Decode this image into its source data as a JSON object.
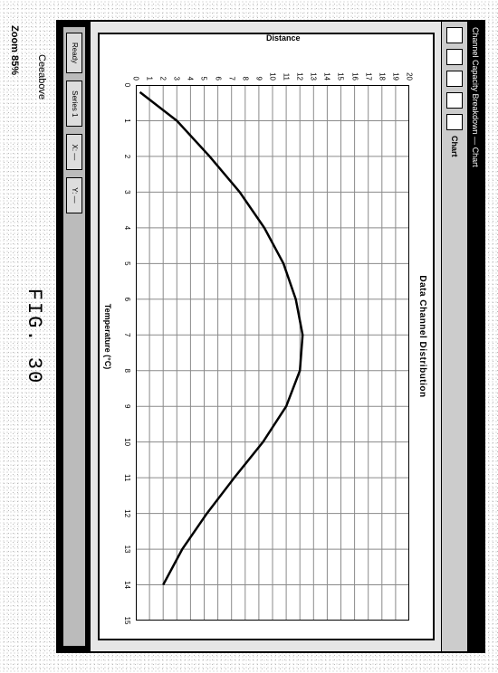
{
  "window": {
    "title": "Channel Capacity Breakdown — Chart",
    "toolbar_label": "Chart"
  },
  "chart": {
    "type": "line",
    "title": "Data Channel Distribution",
    "xlabel": "Temperature (°C)",
    "ylabel": "Distance",
    "xlim": [
      0,
      15
    ],
    "ylim": [
      0,
      20
    ],
    "xticks": [
      0,
      1,
      2,
      3,
      4,
      5,
      6,
      7,
      8,
      9,
      10,
      11,
      12,
      13,
      14,
      15
    ],
    "yticks": [
      0,
      1,
      2,
      3,
      4,
      5,
      6,
      7,
      8,
      9,
      10,
      11,
      12,
      13,
      14,
      15,
      16,
      17,
      18,
      19,
      20
    ],
    "grid_color": "#8a8a8a",
    "minor_grid_color": "#c4c4c4",
    "background_color": "#ffffff",
    "line_color": "#000000",
    "line_width": 2.5,
    "series": {
      "x": [
        0.2,
        1,
        2,
        3,
        4,
        5,
        6,
        7,
        8,
        9,
        10,
        11,
        12,
        13,
        14
      ],
      "y": [
        0.3,
        3.0,
        5.4,
        7.6,
        9.4,
        10.8,
        11.7,
        12.2,
        12.0,
        11.0,
        9.3,
        7.2,
        5.2,
        3.4,
        2.0
      ]
    },
    "tick_fontsize": 8,
    "label_fontsize": 9,
    "title_fontsize": 10
  },
  "status": {
    "segments": [
      "Ready",
      "Series 1",
      "X: —",
      "Y: —"
    ]
  },
  "caption": "FIG. 30",
  "lower_label": "Ceeabove",
  "zoom_label": "Zoom 85%"
}
